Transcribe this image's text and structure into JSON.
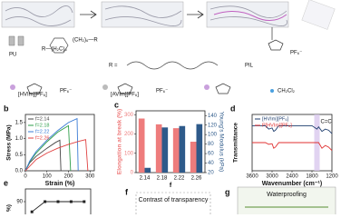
{
  "panel_a": {
    "pu": "PU",
    "pil": "PIL",
    "r_eq": "R =",
    "hvim": "[HVIm][PF₆]",
    "avim": "[AVIm][PF₆]",
    "solvent": "CH₂Cl₂",
    "anion": "PF₆⁻",
    "chain_right": "(CH₂)₆—R",
    "chain_left": "R—(H₂C)₆"
  },
  "panel_f": {
    "label": "f",
    "title": "Contrast of transparency"
  },
  "panel_g": {
    "label": "g",
    "title": "Waterproofing"
  },
  "chart_data": [
    {
      "type": "line",
      "label": "b",
      "x_label": "Strain (%)",
      "y_label": "Stress (MPa)",
      "xlim": [
        0,
        320
      ],
      "ylim": [
        0,
        1.75
      ],
      "xticks": [
        0,
        100,
        200,
        300
      ],
      "yticks": [
        {
          "value": 0,
          "label": "0.0"
        },
        0.5,
        {
          "value": 1,
          "label": "1.0"
        },
        1.5
      ],
      "legend": "top-left",
      "series": [
        {
          "name": "f=2.14",
          "color": "#444444",
          "x": [
            0,
            20,
            50,
            100,
            140,
            160,
            165
          ],
          "values": [
            0,
            0.25,
            0.45,
            0.7,
            0.88,
            0.95,
            0
          ]
        },
        {
          "name": "f=2.18",
          "color": "#2e9e4a",
          "x": [
            0,
            20,
            50,
            100,
            150,
            200,
            210
          ],
          "values": [
            0,
            0.28,
            0.55,
            0.9,
            1.2,
            1.4,
            0
          ]
        },
        {
          "name": "f=2.22",
          "color": "#3a7bd5",
          "x": [
            0,
            20,
            50,
            100,
            150,
            200,
            240,
            245
          ],
          "values": [
            0,
            0.3,
            0.6,
            0.95,
            1.25,
            1.5,
            1.62,
            0
          ]
        },
        {
          "name": "f=2.26",
          "color": "#e04040",
          "x": [
            0,
            50,
            100,
            150,
            200,
            250,
            280,
            290
          ],
          "values": [
            0,
            0.35,
            0.55,
            0.7,
            0.82,
            0.92,
            0.97,
            0
          ]
        }
      ]
    },
    {
      "type": "bar",
      "label": "c",
      "x_label": "f",
      "y_label": "Elongation at break (%)",
      "y2_label": "Young's Modulus (kPa)",
      "categories": [
        "2.14",
        "2.18",
        "2.22",
        "2.26"
      ],
      "ylim": [
        0,
        320
      ],
      "yticks": [
        0,
        100,
        200,
        300
      ],
      "y2lim": [
        20,
        150
      ],
      "y2ticks": [
        20,
        40,
        60,
        80,
        100,
        120,
        140
      ],
      "series": [
        {
          "name": "Elongation at break (%)",
          "color": "#ee7c7c",
          "values": [
            280,
            250,
            230,
            160
          ]
        },
        {
          "name": "Young's Modulus (kPa)",
          "color": "#2e5a8a",
          "axis": "y2",
          "values": [
            30,
            115,
            118,
            122
          ]
        }
      ]
    },
    {
      "type": "line",
      "label": "d",
      "x_label": "Wavenumber (cm⁻¹)",
      "y_label": "Transmittance",
      "xlim": [
        3600,
        1200
      ],
      "ylim": [
        0,
        100
      ],
      "xticks": [
        3600,
        3000,
        2400,
        1800,
        1200
      ],
      "legend": "top-left",
      "annotation": {
        "text": "C=C",
        "x": 1650
      },
      "series": [
        {
          "name": "[HVIm][PF₆]",
          "color": "#1f3e6e",
          "x": [
            3600,
            3200,
            3100,
            3000,
            2950,
            2900,
            2800,
            2400,
            1900,
            1800,
            1650,
            1600,
            1500,
            1400,
            1300,
            1200
          ],
          "values": [
            80,
            80,
            74,
            76,
            70,
            72,
            80,
            80,
            80,
            80,
            74,
            78,
            70,
            74,
            72,
            66
          ]
        },
        {
          "name": "P[HVIm][PF₆]",
          "color": "#e03030",
          "x": [
            3600,
            3200,
            3100,
            3000,
            2950,
            2900,
            2800,
            2400,
            1900,
            1800,
            1650,
            1600,
            1500,
            1400,
            1300,
            1200
          ],
          "values": [
            50,
            50,
            47,
            48,
            40,
            42,
            50,
            50,
            50,
            50,
            50,
            50,
            40,
            45,
            42,
            36
          ]
        }
      ]
    },
    {
      "type": "line",
      "label": "e",
      "y_label": "%)",
      "ylim": [
        80,
        95
      ],
      "yticks": [
        90
      ],
      "markers": true,
      "categories": [
        null,
        null,
        null,
        null,
        null
      ],
      "series": [
        {
          "name": null,
          "color": "#222222",
          "values": [
            86,
            90,
            90,
            90,
            90
          ]
        }
      ]
    }
  ]
}
